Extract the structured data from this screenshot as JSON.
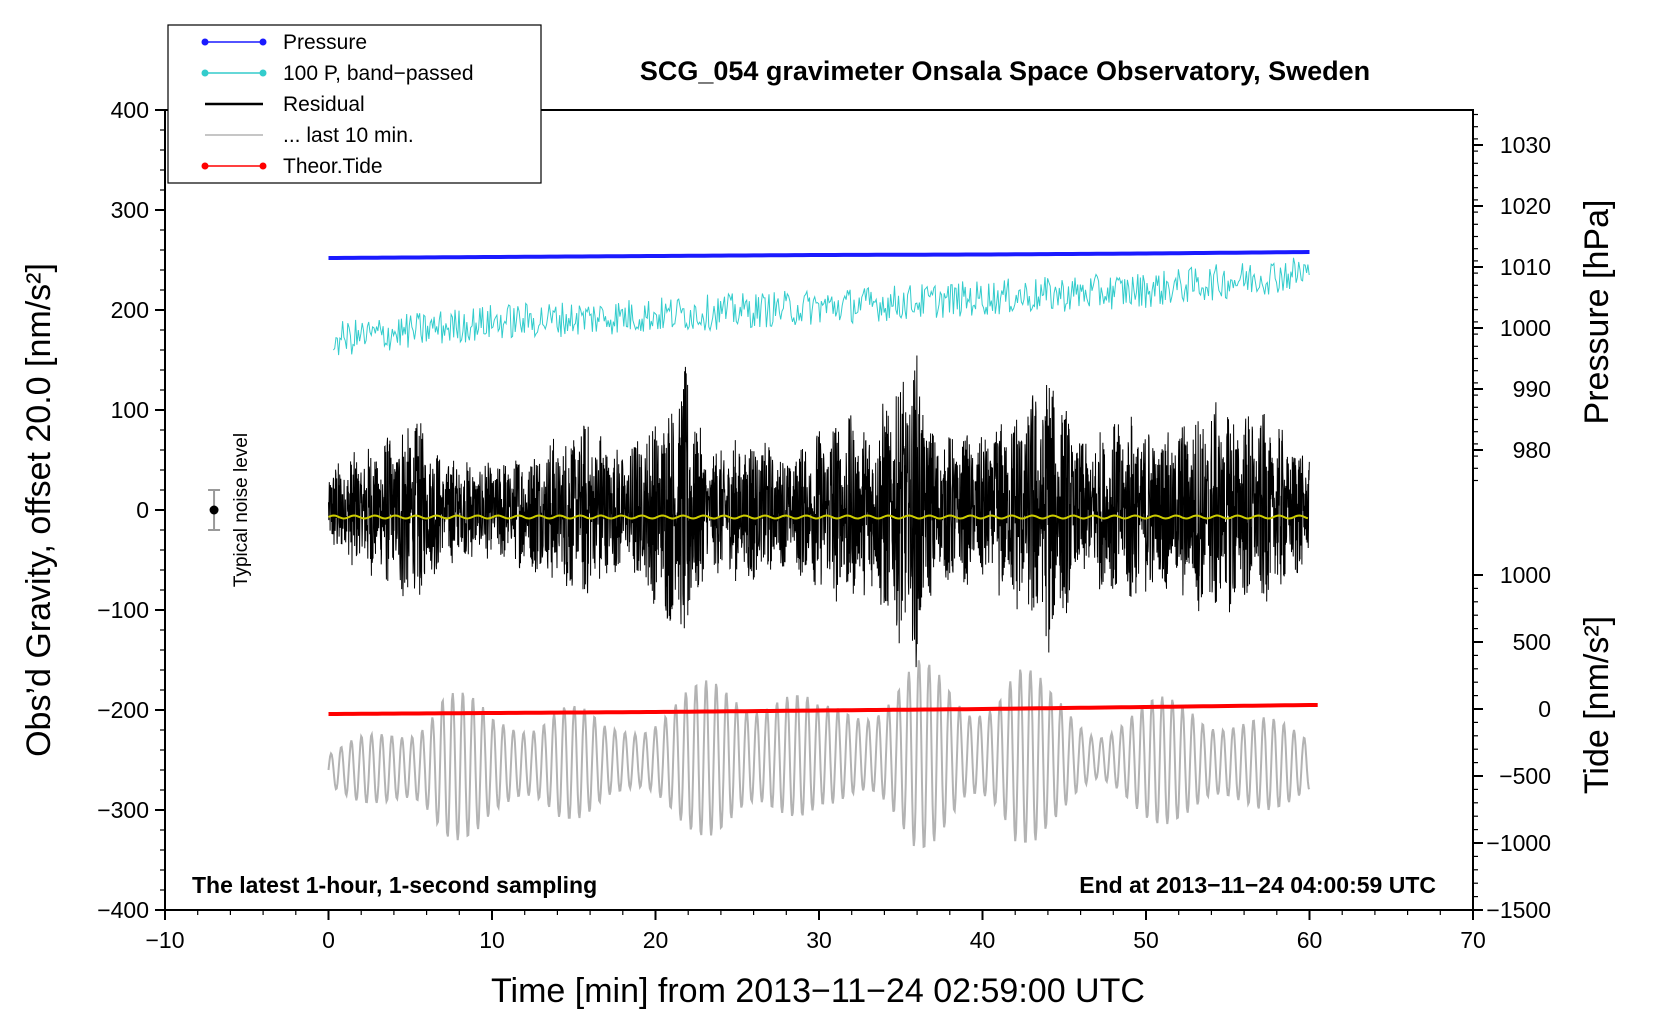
{
  "chart_data": {
    "type": "line",
    "title": "SCG_054 gravimeter Onsala Space Observatory, Sweden",
    "xlabel": "Time [min] from 2013−11−24 02:59:00 UTC",
    "ylabel_left": "Obs’d Gravity, offset 20.0 [nm/s²]",
    "ylabel_right_pressure": "Pressure [hPa]",
    "ylabel_right_tide": "Tide [nm/s²]",
    "xlim": [
      -10,
      70
    ],
    "ylim": [
      -400,
      400
    ],
    "x_ticks": [
      -10,
      0,
      10,
      20,
      30,
      40,
      50,
      60,
      70
    ],
    "x_tick_labels": [
      "−10",
      "0",
      "10",
      "20",
      "30",
      "40",
      "50",
      "60",
      "70"
    ],
    "y_ticks": [
      400,
      300,
      200,
      100,
      0,
      -100,
      -200,
      -300,
      -400
    ],
    "y_tick_labels": [
      "400",
      "300",
      "200",
      "100",
      "0",
      "−100",
      "−200",
      "−300",
      "−400"
    ],
    "pressure_axis": {
      "ticks": [
        1030,
        1020,
        1010,
        1000,
        990,
        980
      ],
      "tick_labels": [
        "1030",
        "1020",
        "1010",
        "1000",
        "990",
        "980"
      ],
      "left_value_at": {
        "hpa_1030": 365,
        "hpa_980": 60
      }
    },
    "tide_axis": {
      "ticks": [
        1000,
        500,
        0,
        -500,
        -1000,
        -1500
      ],
      "tick_labels": [
        "1000",
        "500",
        "0",
        "−500",
        "−1000",
        "−1500"
      ],
      "left_value_at": {
        "nms2_1000": -65,
        "nms2_-1500": -400
      }
    },
    "legend": [
      {
        "label": "Pressure",
        "color": "#1a1aff",
        "marker": true
      },
      {
        "label": "100 P, band−passed",
        "color": "#33cccc",
        "marker": true
      },
      {
        "label": "Residual",
        "color": "#000000",
        "marker": false
      },
      {
        "label": "... last 10 min.",
        "color": "#b3b3b3",
        "marker": false
      },
      {
        "label": "Theor.Tide",
        "color": "#ff0000",
        "marker": true
      }
    ],
    "series": [
      {
        "name": "Pressure",
        "color": "#1a1aff",
        "x": [
          0,
          10,
          20,
          30,
          40,
          50,
          60
        ],
        "values": [
          252,
          253,
          254,
          255,
          255.5,
          256.5,
          258
        ]
      },
      {
        "name": "100 P, band−passed",
        "color": "#33cccc",
        "x": [
          0,
          10,
          20,
          30,
          40,
          50,
          60
        ],
        "values": [
          170,
          188,
          195,
          203,
          212,
          220,
          238
        ],
        "noise_amplitude": 18
      },
      {
        "name": "Residual",
        "color": "#000000",
        "x": [
          0,
          10,
          20,
          30,
          40,
          50,
          60
        ],
        "values": [
          0,
          0,
          0,
          0,
          0,
          0,
          0
        ],
        "envelope": [
          [
            0,
            45
          ],
          [
            4,
            80
          ],
          [
            5,
            105
          ],
          [
            7,
            55
          ],
          [
            10,
            50
          ],
          [
            12,
            60
          ],
          [
            16,
            95
          ],
          [
            18,
            60
          ],
          [
            21,
            120
          ],
          [
            22,
            150
          ],
          [
            23,
            60
          ],
          [
            26,
            80
          ],
          [
            28,
            55
          ],
          [
            31,
            100
          ],
          [
            33,
            90
          ],
          [
            36,
            160
          ],
          [
            37,
            80
          ],
          [
            40,
            75
          ],
          [
            43,
            120
          ],
          [
            44,
            150
          ],
          [
            46,
            70
          ],
          [
            49,
            100
          ],
          [
            51,
            80
          ],
          [
            54,
            110
          ],
          [
            57,
            100
          ],
          [
            60,
            60
          ]
        ]
      },
      {
        "name": "Residual smoothed",
        "color": "#cccc00",
        "x": [
          0,
          60
        ],
        "values": [
          -7,
          -7
        ]
      },
      {
        "name": "... last 10 min.",
        "color": "#b3b3b3",
        "x": [
          0,
          10,
          20,
          30,
          40,
          50,
          60
        ],
        "values": [
          -260,
          -255,
          -250,
          -245,
          -245,
          -250,
          -255
        ],
        "envelope": [
          [
            0,
            20
          ],
          [
            3,
            40
          ],
          [
            5,
            60
          ],
          [
            7,
            90
          ],
          [
            10,
            55
          ],
          [
            14,
            70
          ],
          [
            17,
            40
          ],
          [
            20,
            60
          ],
          [
            24,
            85
          ],
          [
            27,
            90
          ],
          [
            30,
            50
          ],
          [
            33,
            70
          ],
          [
            36,
            100
          ],
          [
            39,
            65
          ],
          [
            42,
            110
          ],
          [
            44,
            70
          ],
          [
            47,
            40
          ],
          [
            50,
            60
          ],
          [
            53,
            75
          ],
          [
            56,
            50
          ],
          [
            60,
            40
          ]
        ]
      },
      {
        "name": "Theor.Tide",
        "color": "#ff0000",
        "x": [
          0,
          10,
          20,
          30,
          40,
          50,
          60
        ],
        "values": [
          -204,
          -203,
          -202,
          -200.5,
          -199,
          -197,
          -195
        ]
      }
    ],
    "noise_marker": {
      "x": -7,
      "value": 0,
      "error": 20,
      "label": "Typical noise level"
    },
    "annotations": {
      "left_bottom": "The latest 1-hour, 1-second sampling",
      "right_bottom": "End at 2013−11−24 04:00:59 UTC"
    }
  }
}
